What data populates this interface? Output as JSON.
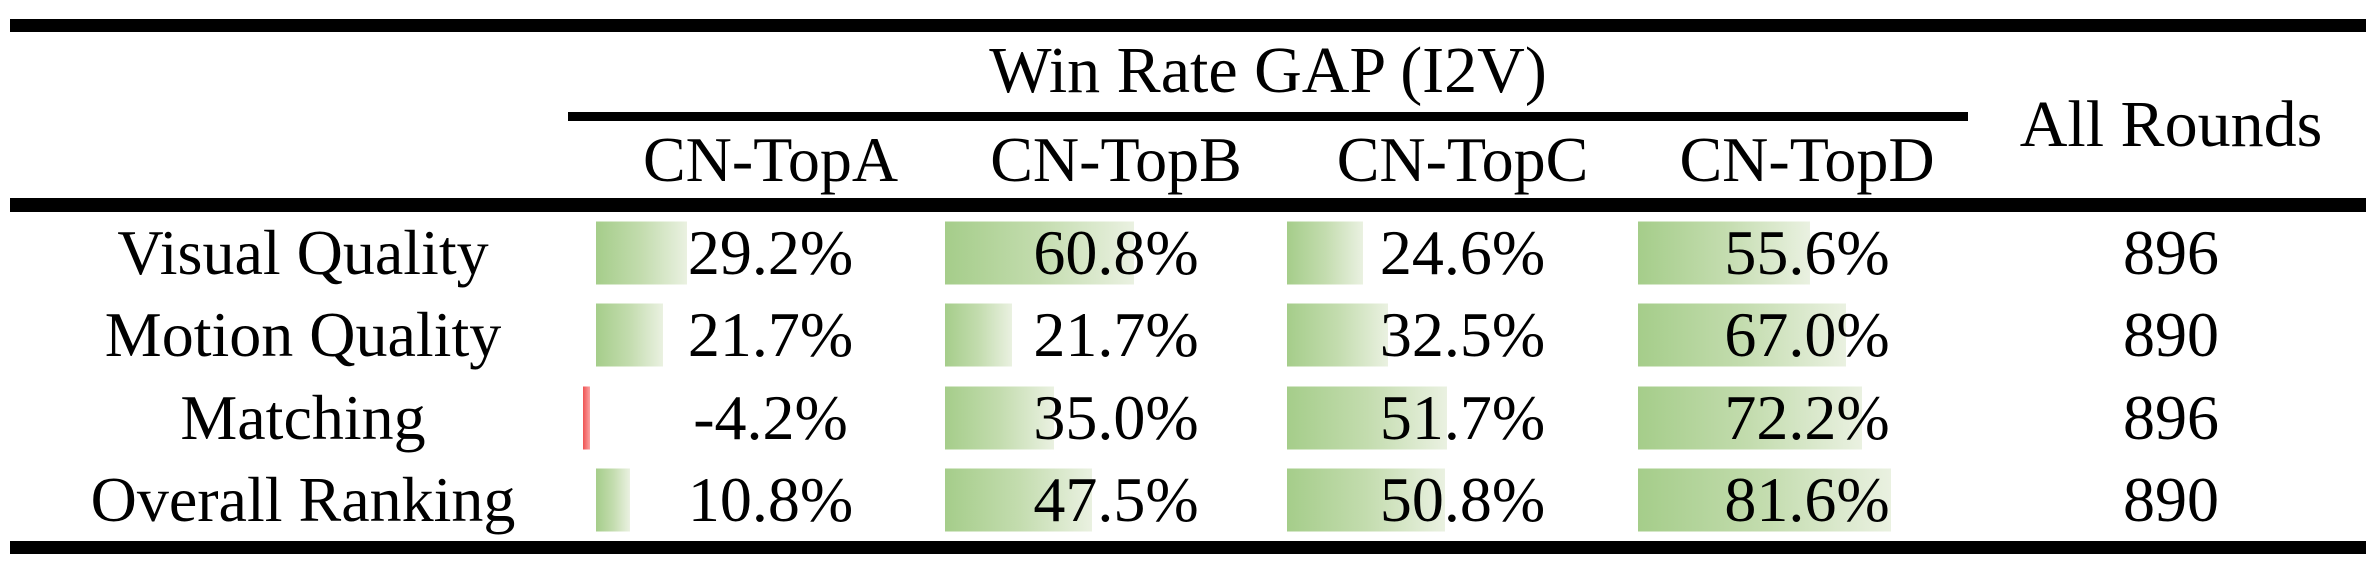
{
  "header": {
    "group_title": "Win Rate GAP (I2V)",
    "all_rounds": "All Rounds"
  },
  "columns": [
    "CN-TopA",
    "CN-TopB",
    "CN-TopC",
    "CN-TopD"
  ],
  "rows": [
    {
      "label": "Visual Quality",
      "values": [
        29.2,
        60.8,
        24.6,
        55.6
      ],
      "display": [
        "29.2%",
        "60.8%",
        "24.6%",
        "55.6%"
      ],
      "all_rounds": "896"
    },
    {
      "label": "Motion Quality",
      "values": [
        21.7,
        21.7,
        32.5,
        67.0
      ],
      "display": [
        "21.7%",
        "21.7%",
        "32.5%",
        "67.0%"
      ],
      "all_rounds": "890"
    },
    {
      "label": "Matching",
      "values": [
        -4.2,
        35.0,
        51.7,
        72.2
      ],
      "display": [
        "-4.2%",
        "35.0%",
        "51.7%",
        "72.2%"
      ],
      "all_rounds": "896"
    },
    {
      "label": "Overall Ranking",
      "values": [
        10.8,
        47.5,
        50.8,
        81.6
      ],
      "display": [
        "10.8%",
        "47.5%",
        "50.8%",
        "81.6%"
      ],
      "all_rounds": "890"
    }
  ],
  "colors": {
    "bar_positive_start": "#a5cd8a",
    "bar_positive_end": "#eaf1e1",
    "bar_negative_start": "#ef5252",
    "bar_negative_end": "#fba3a3",
    "rule_color": "#000000",
    "text_color": "#000000"
  }
}
